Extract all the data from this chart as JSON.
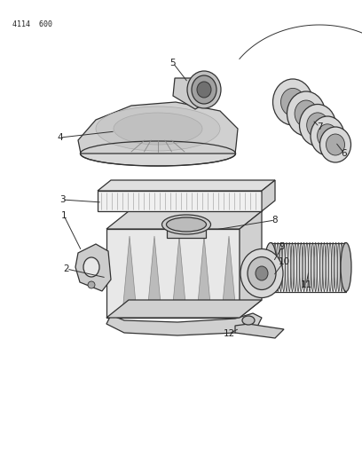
{
  "header_text": "4114  600",
  "background_color": "#ffffff",
  "line_color": "#333333",
  "text_color": "#222222",
  "figsize": [
    4.08,
    5.33
  ],
  "dpi": 100
}
